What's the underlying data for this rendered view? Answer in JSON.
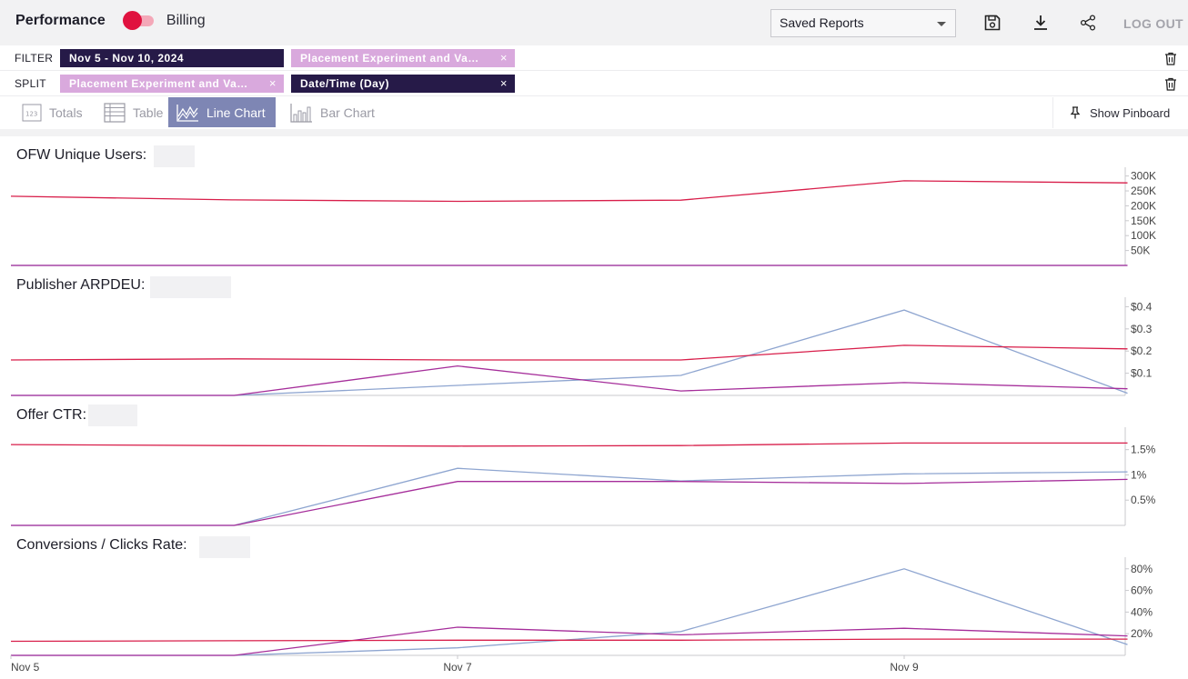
{
  "header": {
    "title": "Performance",
    "toggle_label": "Billing",
    "saved_reports": "Saved Reports",
    "save_icon": "save-icon",
    "download_icon": "download-icon",
    "share_icon": "share-icon",
    "logout": "LOG OUT"
  },
  "filter": {
    "label": "FILTER",
    "pills": [
      "Nov 5 - Nov 10, 2024",
      "Placement Experiment and Va…"
    ],
    "remove_glyph": "×"
  },
  "split": {
    "label": "SPLIT",
    "pills": [
      "Placement Experiment and Va…",
      "Date/Time (Day)"
    ],
    "remove_glyph": "×"
  },
  "views": {
    "tabs": [
      "Totals",
      "Table",
      "Line Chart",
      "Bar Chart"
    ],
    "active": "Line Chart",
    "pinboard": "Show Pinboard"
  },
  "colors": {
    "series_red": "#d81e4a",
    "series_purple": "#a52d9a",
    "series_blue": "#8ea5d0",
    "accent_tab": "#7e86b4",
    "pill_dark": "#261a48",
    "pill_light": "#d9a9dd"
  },
  "chart_data": [
    {
      "type": "line",
      "title": "OFW Unique Users:",
      "x": [
        "Nov 5",
        "Nov 6",
        "Nov 7",
        "Nov 8",
        "Nov 9",
        "Nov 10"
      ],
      "y_ticks": [
        "300K",
        "250K",
        "200K",
        "150K",
        "100K",
        "50K"
      ],
      "y_tick_values": [
        300000,
        250000,
        200000,
        150000,
        100000,
        50000
      ],
      "ylim": [
        0,
        305000
      ],
      "series": [
        {
          "color": "#d81e4a",
          "values": [
            232000,
            220000,
            215000,
            219000,
            284000,
            277000
          ]
        },
        {
          "color": "#a52d9a",
          "values": [
            0,
            0,
            0,
            0,
            0,
            0
          ]
        },
        {
          "color": "#8ea5d0",
          "values": [
            0,
            0,
            0,
            0,
            0,
            0
          ]
        }
      ]
    },
    {
      "type": "line",
      "title": "Publisher ARPDEU:",
      "x": [
        "Nov 5",
        "Nov 6",
        "Nov 7",
        "Nov 8",
        "Nov 9",
        "Nov 10"
      ],
      "y_ticks": [
        "$0.4",
        "$0.3",
        "$0.2",
        "$0.1"
      ],
      "y_tick_values": [
        0.4,
        0.3,
        0.2,
        0.1
      ],
      "ylim": [
        0,
        0.41
      ],
      "series": [
        {
          "color": "#d81e4a",
          "values": [
            0.16,
            0.165,
            0.16,
            0.16,
            0.226,
            0.21
          ]
        },
        {
          "color": "#a52d9a",
          "values": [
            0,
            0,
            0.133,
            0.02,
            0.058,
            0.03
          ]
        },
        {
          "color": "#8ea5d0",
          "values": [
            0,
            0,
            0.045,
            0.09,
            0.385,
            0.01
          ]
        }
      ]
    },
    {
      "type": "line",
      "title": "Offer CTR:",
      "x": [
        "Nov 5",
        "Nov 6",
        "Nov 7",
        "Nov 8",
        "Nov 9",
        "Nov 10"
      ],
      "y_ticks": [
        "1.5%",
        "1%",
        "0.5%"
      ],
      "y_tick_values": [
        1.5,
        1.0,
        0.5
      ],
      "ylim": [
        0,
        1.8
      ],
      "series": [
        {
          "color": "#d81e4a",
          "values": [
            1.6,
            1.58,
            1.57,
            1.58,
            1.63,
            1.63
          ]
        },
        {
          "color": "#a52d9a",
          "values": [
            0,
            0,
            0.87,
            0.87,
            0.83,
            0.91
          ]
        },
        {
          "color": "#8ea5d0",
          "values": [
            0,
            0,
            1.13,
            0.88,
            1.02,
            1.06
          ]
        }
      ]
    },
    {
      "type": "line",
      "title": "Conversions / Clicks Rate:",
      "x": [
        "Nov 5",
        "Nov 6",
        "Nov 7",
        "Nov 8",
        "Nov 9",
        "Nov 10"
      ],
      "x_tick_labels": [
        "Nov 5",
        "",
        "Nov 7",
        "",
        "Nov 9",
        ""
      ],
      "y_ticks": [
        "80%",
        "60%",
        "40%",
        "20%"
      ],
      "y_tick_values": [
        80,
        60,
        40,
        20
      ],
      "ylim": [
        0,
        84
      ],
      "series": [
        {
          "color": "#d81e4a",
          "values": [
            13,
            13.5,
            14,
            14,
            15,
            15
          ]
        },
        {
          "color": "#a52d9a",
          "values": [
            0,
            0,
            26,
            19,
            25,
            18
          ]
        },
        {
          "color": "#8ea5d0",
          "values": [
            0,
            0,
            7,
            22,
            80,
            10
          ]
        }
      ]
    }
  ]
}
